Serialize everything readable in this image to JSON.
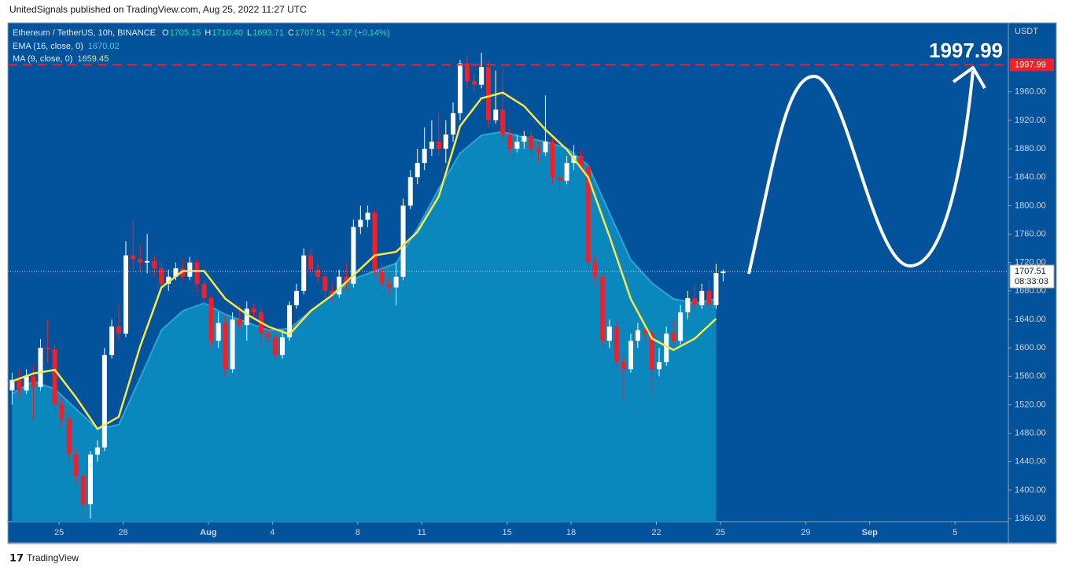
{
  "header": {
    "publisher": "UnitedSignals published on TradingView.com, Aug 25, 2022 11:27 UTC"
  },
  "legend": {
    "symbol": "Ethereum / TetherUS, 10h, BINANCE",
    "items": [
      {
        "label": "O",
        "value": "1705.15"
      },
      {
        "label": "H",
        "value": "1710.40"
      },
      {
        "label": "L",
        "value": "1693.71"
      },
      {
        "label": "C",
        "value": "1707.51"
      }
    ],
    "change": "+2.37 (+0.14%)"
  },
  "chart_data": {
    "type": "candlestick",
    "y_unit": "USDT",
    "up_color": "#ffffff",
    "down_color": "#f0202a",
    "x": [
      22.8,
      23.13,
      23.47,
      23.8,
      24.13,
      24.47,
      24.8,
      25.13,
      25.47,
      25.8,
      26.13,
      26.47,
      26.8,
      27.13,
      27.47,
      27.8,
      28.13,
      28.47,
      28.8,
      29.13,
      29.47,
      29.8,
      30.13,
      30.47,
      30.8,
      31.13,
      31.47,
      31.8,
      32.13,
      32.47,
      32.8,
      33.13,
      33.47,
      33.8,
      34.13,
      34.47,
      34.8,
      35.13,
      35.47,
      35.8,
      36.13,
      36.47,
      36.8,
      37.13,
      37.47,
      37.8,
      38.13,
      38.47,
      38.8,
      39.13,
      39.47,
      39.8,
      40.13,
      40.47,
      40.8,
      41.13,
      41.47,
      41.8,
      42.13,
      42.47,
      42.8,
      43.13,
      43.47,
      43.8,
      44.13,
      44.47,
      44.8,
      45.13,
      45.47,
      45.8,
      46.13,
      46.47,
      46.8,
      47.13,
      47.47,
      47.8,
      48.13,
      48.47,
      48.8,
      49.13,
      49.47,
      49.8,
      50.13,
      50.47,
      50.8,
      51.13,
      51.47,
      51.8,
      52.13,
      52.47,
      52.8,
      53.13,
      53.47,
      53.8,
      54.13,
      54.47,
      54.8,
      55.13,
      55.47,
      55.8,
      56.13
    ],
    "open": [
      1540,
      1555,
      1540,
      1560,
      1545,
      1600,
      1598,
      1520,
      1500,
      1450,
      1420,
      1380,
      1450,
      1460,
      1590,
      1630,
      1620,
      1730,
      1725,
      1720,
      1722,
      1712,
      1690,
      1700,
      1712,
      1700,
      1720,
      1690,
      1670,
      1610,
      1635,
      1570,
      1640,
      1632,
      1655,
      1650,
      1620,
      1615,
      1590,
      1615,
      1660,
      1680,
      1730,
      1710,
      1700,
      1680,
      1675,
      1700,
      1690,
      1770,
      1780,
      1790,
      1710,
      1690,
      1685,
      1700,
      1800,
      1840,
      1860,
      1880,
      1890,
      1880,
      1900,
      1930,
      2000,
      1975,
      1970,
      1995,
      1920,
      1935,
      1900,
      1880,
      1890,
      1898,
      1880,
      1875,
      1890,
      1840,
      1835,
      1860,
      1870,
      1855,
      1720,
      1700,
      1610,
      1630,
      1580,
      1570,
      1610,
      1625,
      1620,
      1570,
      1580,
      1620,
      1610,
      1650,
      1670,
      1660,
      1680,
      1660,
      1705.15
    ],
    "high": [
      1565,
      1570,
      1570,
      1575,
      1612,
      1640,
      1605,
      1530,
      1510,
      1460,
      1425,
      1455,
      1470,
      1600,
      1640,
      1660,
      1750,
      1780,
      1745,
      1760,
      1730,
      1720,
      1710,
      1720,
      1725,
      1728,
      1725,
      1695,
      1675,
      1650,
      1645,
      1650,
      1660,
      1665,
      1662,
      1655,
      1630,
      1625,
      1625,
      1665,
      1690,
      1740,
      1740,
      1720,
      1705,
      1690,
      1710,
      1720,
      1780,
      1800,
      1800,
      1795,
      1720,
      1700,
      1720,
      1810,
      1850,
      1880,
      1910,
      1920,
      1930,
      1920,
      1945,
      2005,
      2010,
      1985,
      2015,
      2005,
      1990,
      1995,
      1910,
      1900,
      1905,
      1905,
      1890,
      1955,
      1895,
      1850,
      1870,
      1885,
      1880,
      1860,
      1730,
      1705,
      1640,
      1640,
      1590,
      1620,
      1635,
      1630,
      1625,
      1600,
      1630,
      1640,
      1660,
      1680,
      1690,
      1690,
      1695,
      1718,
      1710.4
    ],
    "low": [
      1520,
      1530,
      1535,
      1500,
      1540,
      1580,
      1510,
      1490,
      1440,
      1410,
      1360,
      1360,
      1440,
      1455,
      1585,
      1610,
      1615,
      1710,
      1705,
      1705,
      1700,
      1685,
      1680,
      1695,
      1695,
      1695,
      1680,
      1660,
      1600,
      1600,
      1560,
      1565,
      1625,
      1610,
      1640,
      1600,
      1605,
      1580,
      1585,
      1610,
      1655,
      1675,
      1700,
      1690,
      1670,
      1665,
      1670,
      1680,
      1685,
      1760,
      1770,
      1700,
      1670,
      1675,
      1660,
      1695,
      1795,
      1830,
      1850,
      1870,
      1870,
      1860,
      1890,
      1920,
      1965,
      1960,
      1965,
      1910,
      1915,
      1890,
      1870,
      1875,
      1880,
      1870,
      1860,
      1870,
      1830,
      1820,
      1830,
      1850,
      1845,
      1710,
      1690,
      1600,
      1600,
      1570,
      1525,
      1565,
      1600,
      1610,
      1535,
      1560,
      1575,
      1605,
      1605,
      1640,
      1650,
      1655,
      1650,
      1655,
      1693.71
    ],
    "close": [
      1555,
      1540,
      1560,
      1545,
      1600,
      1598,
      1520,
      1500,
      1450,
      1420,
      1380,
      1450,
      1460,
      1590,
      1630,
      1620,
      1730,
      1725,
      1720,
      1722,
      1712,
      1690,
      1700,
      1712,
      1700,
      1720,
      1690,
      1670,
      1610,
      1635,
      1570,
      1640,
      1632,
      1655,
      1650,
      1620,
      1615,
      1590,
      1615,
      1660,
      1680,
      1730,
      1710,
      1700,
      1680,
      1675,
      1700,
      1690,
      1770,
      1780,
      1790,
      1710,
      1690,
      1685,
      1700,
      1800,
      1840,
      1860,
      1880,
      1890,
      1880,
      1900,
      1930,
      2000,
      1975,
      1970,
      1995,
      1920,
      1935,
      1900,
      1880,
      1890,
      1898,
      1880,
      1875,
      1890,
      1840,
      1835,
      1860,
      1870,
      1855,
      1720,
      1700,
      1610,
      1630,
      1580,
      1570,
      1610,
      1625,
      1620,
      1570,
      1580,
      1620,
      1610,
      1650,
      1670,
      1660,
      1680,
      1660,
      1705.15,
      1707.51
    ],
    "series": [
      {
        "name": "EMA (16, close, 0)",
        "last_label": "1670.02",
        "style": "area",
        "color": "#4dc3e8",
        "fill": "#0a88bd",
        "x": [
          22.8,
          23.8,
          24.8,
          25.8,
          26.8,
          27.8,
          28.8,
          29.8,
          30.8,
          31.8,
          32.8,
          33.8,
          34.8,
          35.8,
          36.8,
          37.8,
          38.8,
          39.8,
          40.8,
          41.8,
          42.8,
          43.8,
          44.8,
          45.8,
          46.8,
          47.8,
          48.8,
          49.8,
          50.8,
          51.8,
          52.8,
          53.8,
          54.8,
          55.8
        ],
        "values": [
          1536,
          1553,
          1542,
          1514,
          1486,
          1492,
          1558,
          1625,
          1652,
          1663,
          1647,
          1636,
          1625,
          1627,
          1652,
          1674,
          1697,
          1708,
          1719,
          1768,
          1824,
          1874,
          1899,
          1904,
          1896,
          1890,
          1881,
          1857,
          1790,
          1724,
          1691,
          1669,
          1663,
          1669
        ]
      },
      {
        "name": "MA (9, close, 0)",
        "last_label": "1659.45",
        "style": "line",
        "color": "#f7e84a",
        "x": [
          22.8,
          23.8,
          24.8,
          25.8,
          26.8,
          27.8,
          28.8,
          29.8,
          30.8,
          31.8,
          32.8,
          33.8,
          34.8,
          35.8,
          36.8,
          37.8,
          38.8,
          39.8,
          40.8,
          41.8,
          42.8,
          43.8,
          44.8,
          45.8,
          46.8,
          47.8,
          48.8,
          49.8,
          50.8,
          51.8,
          52.8,
          53.8,
          54.8,
          55.8
        ],
        "values": [
          1553,
          1564,
          1569,
          1530,
          1486,
          1503,
          1602,
          1685,
          1708,
          1708,
          1669,
          1647,
          1630,
          1619,
          1652,
          1674,
          1702,
          1730,
          1735,
          1763,
          1813,
          1912,
          1951,
          1959,
          1940,
          1907,
          1879,
          1840,
          1757,
          1669,
          1613,
          1597,
          1613,
          1641
        ]
      }
    ],
    "xlim": [
      22.6,
      69.5
    ],
    "xticks": [
      {
        "value": 25,
        "label": "25"
      },
      {
        "value": 28,
        "label": "28"
      },
      {
        "value": 32,
        "label": "Aug"
      },
      {
        "value": 35,
        "label": "4"
      },
      {
        "value": 39,
        "label": "8"
      },
      {
        "value": 42,
        "label": "11"
      },
      {
        "value": 46,
        "label": "15"
      },
      {
        "value": 49,
        "label": "18"
      },
      {
        "value": 53,
        "label": "22"
      },
      {
        "value": 56,
        "label": "25"
      },
      {
        "value": 60,
        "label": "29"
      },
      {
        "value": 63,
        "label": "Sep"
      },
      {
        "value": 67,
        "label": "5"
      }
    ],
    "ylim": [
      1355.6,
      2056
    ],
    "yticks": [
      {
        "value": 1360,
        "label": "1360.00"
      },
      {
        "value": 1400,
        "label": "1400.00"
      },
      {
        "value": 1440,
        "label": "1440.00"
      },
      {
        "value": 1480,
        "label": "1480.00"
      },
      {
        "value": 1520,
        "label": "1520.00"
      },
      {
        "value": 1560,
        "label": "1560.00"
      },
      {
        "value": 1600,
        "label": "1600.00"
      },
      {
        "value": 1640,
        "label": "1640.00"
      },
      {
        "value": 1680,
        "label": "1680.00"
      },
      {
        "value": 1720,
        "label": "1720.00"
      },
      {
        "value": 1760,
        "label": "1760.00"
      },
      {
        "value": 1800,
        "label": "1800.00"
      },
      {
        "value": 1840,
        "label": "1840.00"
      },
      {
        "value": 1880,
        "label": "1880.00"
      },
      {
        "value": 1920,
        "label": "1920.00"
      },
      {
        "value": 1960,
        "label": "1960.00"
      }
    ],
    "target_line": {
      "value": 1997.99,
      "label": "1997.99",
      "annotation": "1997.99",
      "color": "#f0202a"
    },
    "last_price": {
      "label": "1707.51",
      "countdown": "08:33:03"
    }
  },
  "footer": {
    "brand": "TradingView"
  }
}
